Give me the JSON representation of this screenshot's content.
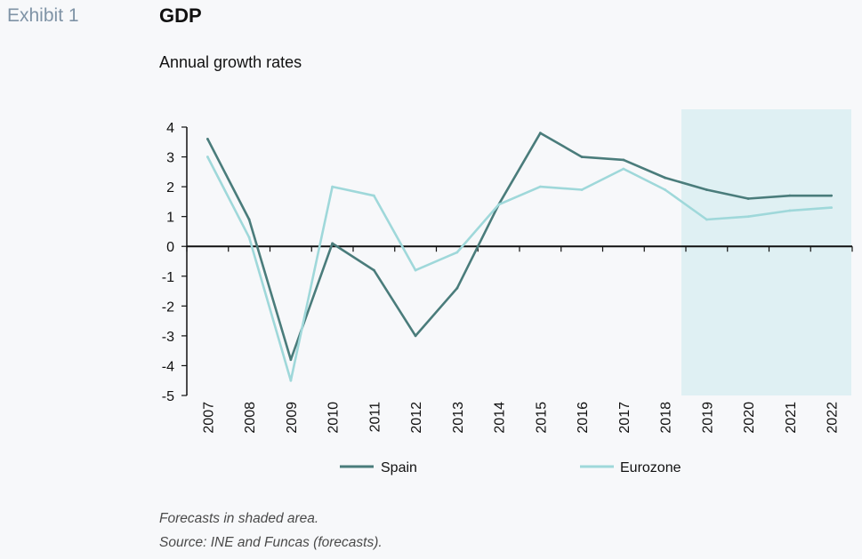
{
  "header": {
    "exhibit": "Exhibit 1",
    "title": "GDP",
    "subtitle": "Annual growth rates"
  },
  "footer": {
    "note": "Forecasts in shaded area.",
    "source": "Source: INE and Funcas (forecasts)."
  },
  "chart_data": {
    "type": "line",
    "title": "GDP",
    "subtitle": "Annual growth rates",
    "x": [
      "2007",
      "2008",
      "2009",
      "2010",
      "2011",
      "2012",
      "2013",
      "2014",
      "2015",
      "2016",
      "2017",
      "2018",
      "2019",
      "2020",
      "2021",
      "2022"
    ],
    "series": [
      {
        "name": "Spain",
        "color": "#4a7c7b",
        "values": [
          3.6,
          0.9,
          -3.8,
          0.1,
          -0.8,
          -3.0,
          -1.4,
          1.4,
          3.8,
          3.0,
          2.9,
          2.3,
          1.9,
          1.6,
          1.7,
          1.7
        ]
      },
      {
        "name": "Eurozone",
        "color": "#9fd8da",
        "values": [
          3.0,
          0.3,
          -4.5,
          2.0,
          1.7,
          -0.8,
          -0.2,
          1.4,
          2.0,
          1.9,
          2.6,
          1.9,
          0.9,
          1.0,
          1.2,
          1.3
        ]
      }
    ],
    "ylim": [
      -5,
      4
    ],
    "yticks": [
      "4",
      "3",
      "2",
      "1",
      "0",
      "-1",
      "-2",
      "-3",
      "-4",
      "-5"
    ],
    "shaded_forecast": {
      "from": "2019",
      "to": "2022",
      "color": "#dff0f3"
    },
    "legend": {
      "position": "bottom"
    },
    "grid": false
  }
}
